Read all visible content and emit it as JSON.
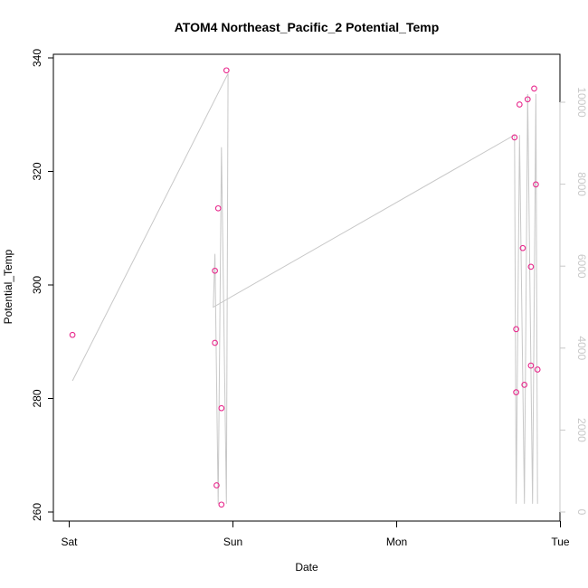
{
  "chart_data": {
    "type": "scatter",
    "title": "ATOM4 Northeast_Pacific_2 Potential_Temp",
    "xlabel": "Date",
    "ylabel": "Potential_Temp",
    "x_ticks": [
      "Sat",
      "Sun",
      "Mon",
      "Tue"
    ],
    "x_range_days": [
      -0.1,
      3.0
    ],
    "ylim": [
      257.5,
      341.5
    ],
    "y_ticks": [
      260,
      280,
      300,
      320,
      340
    ],
    "secondary_axis": {
      "side": "right",
      "ylim": [
        -200,
        10700
      ],
      "ticks": [
        0,
        2000,
        4000,
        6000,
        8000,
        10000
      ],
      "color": "#c8c8c8"
    },
    "points_color": "#e8288c",
    "line_color": "#c8c8c8",
    "points": [
      {
        "day": 0.02,
        "value": 291.2
      },
      {
        "day": 0.89,
        "value": 302.5
      },
      {
        "day": 0.89,
        "value": 289.8
      },
      {
        "day": 0.9,
        "value": 264.7
      },
      {
        "day": 0.91,
        "value": 313.5
      },
      {
        "day": 0.93,
        "value": 278.3
      },
      {
        "day": 0.93,
        "value": 261.3
      },
      {
        "day": 0.96,
        "value": 337.8
      },
      {
        "day": 2.72,
        "value": 326.0
      },
      {
        "day": 2.73,
        "value": 292.2
      },
      {
        "day": 2.73,
        "value": 281.1
      },
      {
        "day": 2.75,
        "value": 331.8
      },
      {
        "day": 2.77,
        "value": 306.5
      },
      {
        "day": 2.78,
        "value": 282.4
      },
      {
        "day": 2.8,
        "value": 332.7
      },
      {
        "day": 2.82,
        "value": 303.2
      },
      {
        "day": 2.82,
        "value": 285.8
      },
      {
        "day": 2.84,
        "value": 334.6
      },
      {
        "day": 2.85,
        "value": 317.7
      },
      {
        "day": 2.86,
        "value": 285.1
      }
    ],
    "line_series": {
      "name": "secondary",
      "points": [
        {
          "day": 0.02,
          "value": 3200
        },
        {
          "day": 0.97,
          "value": 10700
        },
        {
          "day": 0.96,
          "value": 200
        },
        {
          "day": 0.93,
          "value": 8900
        },
        {
          "day": 0.91,
          "value": 200
        },
        {
          "day": 0.89,
          "value": 6300
        },
        {
          "day": 0.88,
          "value": 5000
        },
        {
          "day": 2.72,
          "value": 9200
        },
        {
          "day": 2.73,
          "value": 200
        },
        {
          "day": 2.75,
          "value": 9200
        },
        {
          "day": 2.78,
          "value": 200
        },
        {
          "day": 2.8,
          "value": 10200
        },
        {
          "day": 2.83,
          "value": 200
        },
        {
          "day": 2.85,
          "value": 10200
        },
        {
          "day": 2.86,
          "value": 200
        }
      ]
    }
  }
}
